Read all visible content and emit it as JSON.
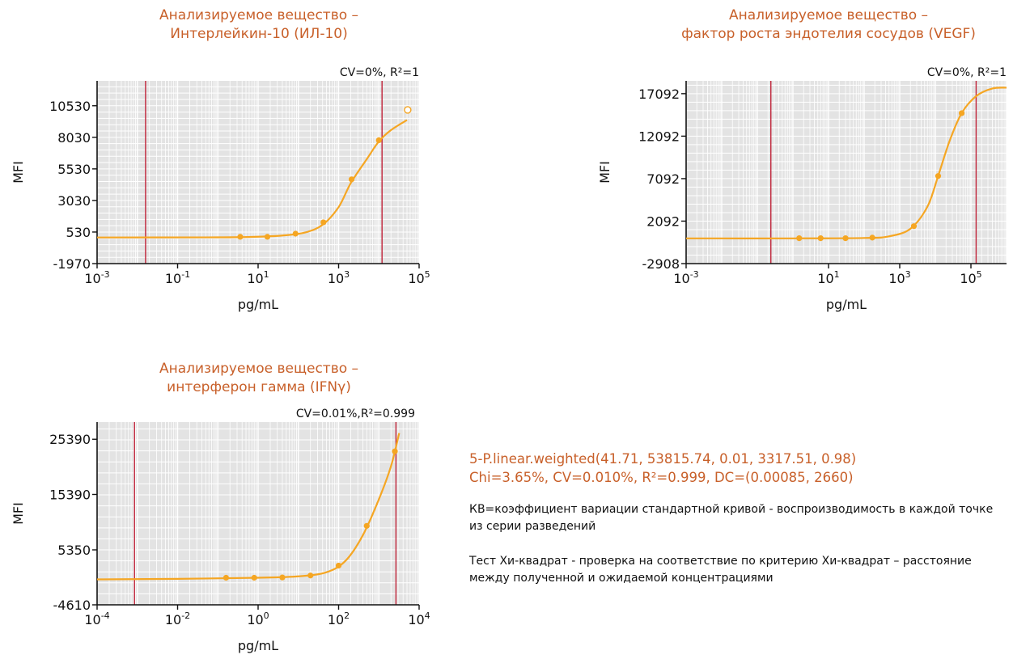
{
  "colors": {
    "curve": "#f5a623",
    "limit_line": "#c0243a",
    "grid_bg": "#e3e3e3",
    "grid_line": "#ffffff",
    "title": "#c8602a"
  },
  "panels": [
    {
      "title_lines": [
        "Анализируемое вещество –",
        "Интерлейкин-10 (ИЛ-10)"
      ],
      "fit_label": "CV=0%, R²=1",
      "ylabel": "MFI",
      "xlabel": "pg/mL",
      "ytick_labels": [
        "10530",
        "8030",
        "5530",
        "3030",
        "530",
        "-1970"
      ],
      "xtick_labels": [
        {
          "base": "10",
          "exp": "-3"
        },
        {
          "base": "10",
          "exp": "-1"
        },
        {
          "base": "10",
          "exp": "1"
        },
        {
          "base": "10",
          "exp": "3"
        },
        {
          "base": "10",
          "exp": "5"
        }
      ]
    },
    {
      "title_lines": [
        "Анализируемое вещество –",
        "фактор роста эндотелия сосудов (VEGF)"
      ],
      "fit_label": "CV=0%, R²=1",
      "ylabel": "MFI",
      "xlabel": "pg/mL",
      "ytick_labels": [
        "17092",
        "12092",
        "7092",
        "2092",
        "-2908"
      ],
      "xtick_labels": [
        {
          "base": "10",
          "exp": "-3"
        },
        {
          "base": "10",
          "exp": "1"
        },
        {
          "base": "10",
          "exp": "3"
        },
        {
          "base": "10",
          "exp": "5"
        }
      ]
    },
    {
      "title_lines": [
        "Анализируемое вещество –",
        "интерферон гамма (IFNγ)"
      ],
      "fit_label": "CV=0.01%,R²=0.999",
      "ylabel": "MFI",
      "xlabel": "pg/mL",
      "ytick_labels": [
        "25390",
        "15390",
        "5350",
        "-4610"
      ],
      "xtick_labels": [
        {
          "base": "10",
          "exp": "-4"
        },
        {
          "base": "10",
          "exp": "-2"
        },
        {
          "base": "10",
          "exp": "0"
        },
        {
          "base": "10",
          "exp": "2"
        },
        {
          "base": "10",
          "exp": "4"
        }
      ]
    }
  ],
  "info": {
    "formula_line1": "5-P.linear.weighted(41.71, 53815.74, 0.01, 3317.51, 0.98)",
    "formula_line2": "Chi=3.65%, CV=0.010%, R²=0.999, DC=(0.00085, 2660)",
    "note_cv": "КВ=коэффициент вариации стандартной кривой - воспроизводимость в каждой точке из серии разведений",
    "note_chi": "Тест Хи-квадрат - проверка на соответствие по критерию Хи-квадрат – расстояние между полученной и ожидаемой концентрациями"
  },
  "chart_data": [
    {
      "type": "scatter",
      "title": "Анализируемое вещество – Интерлейкин-10 (ИЛ-10)",
      "xlabel": "pg/mL",
      "ylabel": "MFI",
      "x_scale": "log",
      "xlim": [
        0.001,
        100000
      ],
      "ylim": [
        -1970,
        12500
      ],
      "yticks": [
        -1970,
        530,
        3030,
        5530,
        8030,
        10530
      ],
      "xticks": [
        0.001,
        0.1,
        10,
        1000,
        100000
      ],
      "annotation": "CV=0%, R²=1",
      "grid": true,
      "limit_lines_x": [
        0.016,
        12000
      ],
      "points": [
        {
          "x": 3.6,
          "y": 150
        },
        {
          "x": 17,
          "y": 150
        },
        {
          "x": 85,
          "y": 400
        },
        {
          "x": 420,
          "y": 1300
        },
        {
          "x": 2100,
          "y": 4700
        },
        {
          "x": 10000,
          "y": 7800
        }
      ],
      "outlier_points": [
        {
          "x": 52000,
          "y": 10200
        }
      ],
      "fit_curve": [
        {
          "x": 0.001,
          "y": 100
        },
        {
          "x": 1,
          "y": 110
        },
        {
          "x": 10,
          "y": 160
        },
        {
          "x": 50,
          "y": 280
        },
        {
          "x": 150,
          "y": 500
        },
        {
          "x": 400,
          "y": 1100
        },
        {
          "x": 1000,
          "y": 2500
        },
        {
          "x": 2000,
          "y": 4400
        },
        {
          "x": 5000,
          "y": 6300
        },
        {
          "x": 10000,
          "y": 7700
        },
        {
          "x": 20000,
          "y": 8600
        },
        {
          "x": 50000,
          "y": 9400
        }
      ]
    },
    {
      "type": "scatter",
      "title": "Анализируемое вещество – фактор роста эндотелия сосудов (VEGF)",
      "xlabel": "pg/mL",
      "ylabel": "MFI",
      "x_scale": "log",
      "xlim": [
        0.001,
        1000000
      ],
      "ylim": [
        -2908,
        18600
      ],
      "yticks": [
        -2908,
        2092,
        7092,
        12092,
        17092
      ],
      "xticks": [
        0.001,
        10,
        1000,
        100000
      ],
      "annotation": "CV=0%, R²=1",
      "grid": true,
      "limit_lines_x": [
        0.24,
        140000
      ],
      "points": [
        {
          "x": 1.5,
          "y": 80
        },
        {
          "x": 6,
          "y": 80
        },
        {
          "x": 30,
          "y": 80
        },
        {
          "x": 170,
          "y": 150
        },
        {
          "x": 2500,
          "y": 1500
        },
        {
          "x": 12000,
          "y": 7400
        },
        {
          "x": 55000,
          "y": 14800
        }
      ],
      "fit_curve": [
        {
          "x": 0.001,
          "y": 60
        },
        {
          "x": 1,
          "y": 60
        },
        {
          "x": 100,
          "y": 110
        },
        {
          "x": 500,
          "y": 300
        },
        {
          "x": 2000,
          "y": 1200
        },
        {
          "x": 6000,
          "y": 3800
        },
        {
          "x": 12000,
          "y": 7400
        },
        {
          "x": 25000,
          "y": 11500
        },
        {
          "x": 55000,
          "y": 14800
        },
        {
          "x": 140000,
          "y": 16800
        },
        {
          "x": 400000,
          "y": 17700
        },
        {
          "x": 1000000,
          "y": 17800
        }
      ]
    },
    {
      "type": "scatter",
      "title": "Анализируемое вещество – интерферон гамма (IFNγ)",
      "xlabel": "pg/mL",
      "ylabel": "MFI",
      "x_scale": "log",
      "xlim": [
        0.0001,
        10000
      ],
      "ylim": [
        -4610,
        28500
      ],
      "yticks": [
        -4610,
        5350,
        15390,
        25390
      ],
      "xticks": [
        0.0001,
        0.01,
        1,
        100,
        10000
      ],
      "annotation": "CV=0.01%,R²=0.999",
      "grid": true,
      "limit_lines_x": [
        0.00085,
        2660
      ],
      "points": [
        {
          "x": 0.16,
          "y": 300
        },
        {
          "x": 0.8,
          "y": 300
        },
        {
          "x": 4,
          "y": 350
        },
        {
          "x": 20,
          "y": 700
        },
        {
          "x": 100,
          "y": 2500
        },
        {
          "x": 500,
          "y": 9700
        },
        {
          "x": 2500,
          "y": 23200
        }
      ],
      "fit_curve": [
        {
          "x": 0.0001,
          "y": 0
        },
        {
          "x": 0.01,
          "y": 100
        },
        {
          "x": 1,
          "y": 300
        },
        {
          "x": 10,
          "y": 550
        },
        {
          "x": 50,
          "y": 1300
        },
        {
          "x": 150,
          "y": 3400
        },
        {
          "x": 400,
          "y": 8000
        },
        {
          "x": 1000,
          "y": 14500
        },
        {
          "x": 2000,
          "y": 20500
        },
        {
          "x": 3200,
          "y": 26500
        }
      ]
    }
  ]
}
